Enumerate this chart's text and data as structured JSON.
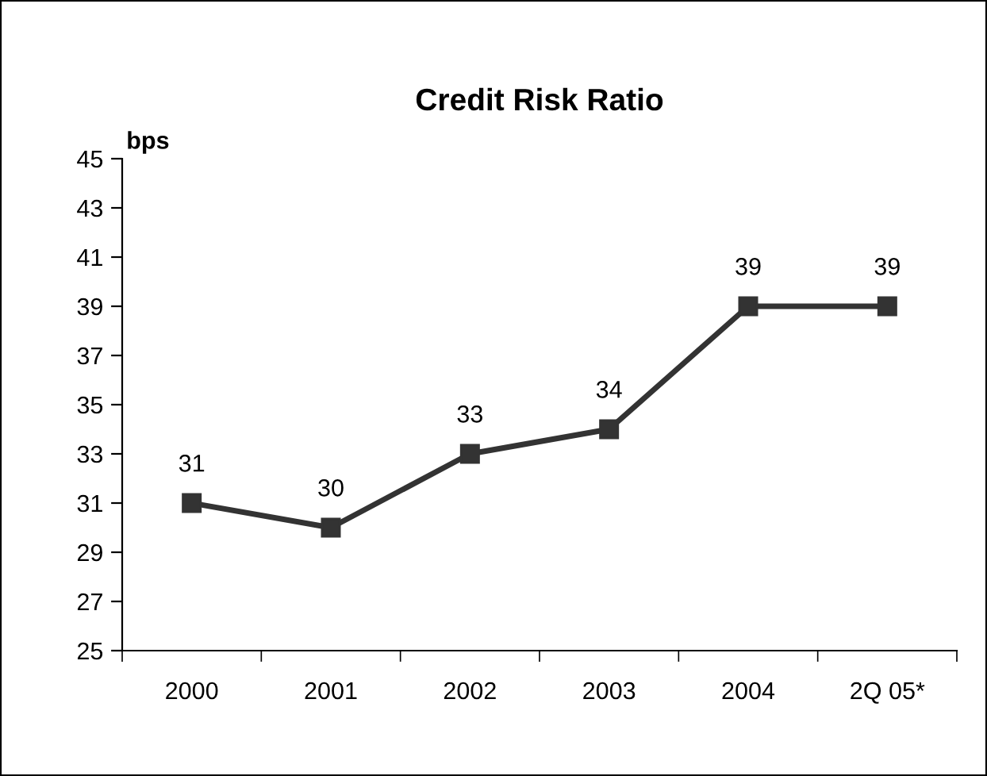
{
  "chart_data": {
    "type": "line",
    "title": "Credit Risk Ratio",
    "ylabel": "bps",
    "categories": [
      "2000",
      "2001",
      "2002",
      "2003",
      "2004",
      "2Q 05*"
    ],
    "series": [
      {
        "color": "#333333",
        "values": [
          31,
          30,
          33,
          34,
          39,
          39
        ]
      }
    ],
    "ylim": [
      25,
      45
    ],
    "yticks": [
      25,
      27,
      29,
      31,
      33,
      35,
      37,
      39,
      41,
      43,
      45
    ],
    "marker": "square",
    "line_style": "solid",
    "data_labels": true,
    "grid": false,
    "legend": false
  }
}
